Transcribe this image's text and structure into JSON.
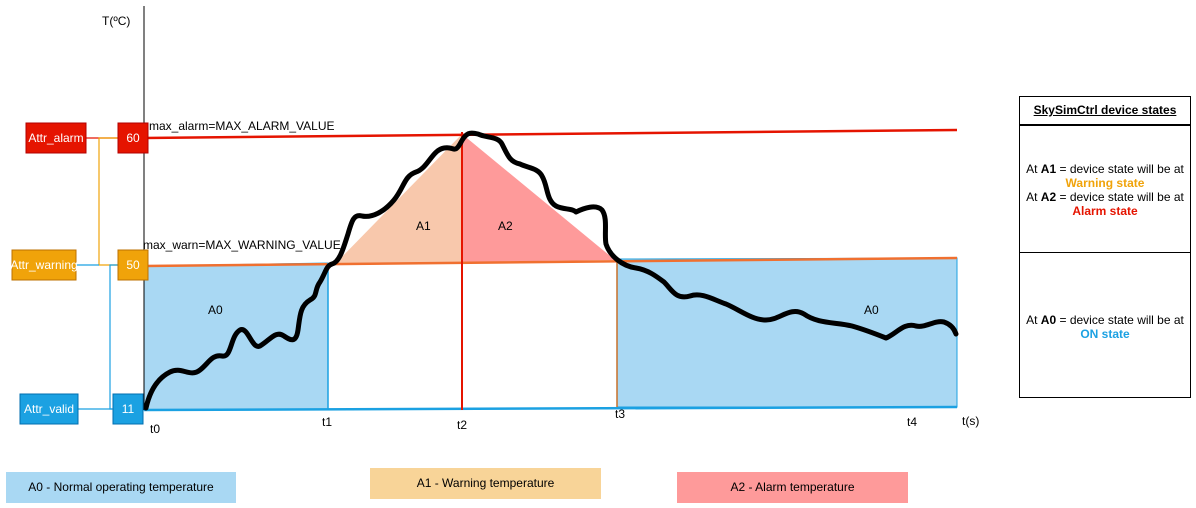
{
  "axes": {
    "y_label": "T(ºC)",
    "x_label": "t(s)",
    "time_ticks": [
      "t0",
      "t1",
      "t2",
      "t3",
      "t4"
    ]
  },
  "thresholds": {
    "alarm": {
      "attr": "Attr_alarm",
      "value": "60",
      "label": "max_alarm=MAX_ALARM_VALUE",
      "color": "#e51400"
    },
    "warning": {
      "attr": "Attr_warning",
      "value": "50",
      "label": "max_warn=MAX_WARNING_VALUE",
      "color": "#f0a30a"
    },
    "valid": {
      "attr": "Attr_valid",
      "value": "11",
      "color": "#1ba1e2"
    }
  },
  "regions": {
    "a0_label": "A0",
    "a1_label": "A1",
    "a2_label": "A2",
    "a0_color": "#a9d8f3",
    "a1_color": "#f8c8ac",
    "a2_color": "#fe9a9a"
  },
  "panel": {
    "title": "SkySimCtrl device states",
    "line1_prefix": "At ",
    "line1_key": "A1",
    "line1_suffix": " = device state will be at",
    "line1_state": "Warning state",
    "line2_prefix": "At ",
    "line2_key": "A2",
    "line2_suffix": " = device state will be at",
    "line2_state": "Alarm state",
    "line3_prefix": "At ",
    "line3_key": "A0",
    "line3_suffix": " = device state will be at",
    "line3_state": "ON state"
  },
  "legend": {
    "a0": "A0 - Normal operating temperature",
    "a1": "A1 - Warning temperature",
    "a2": "A2 - Alarm temperature",
    "a0_color": "#a9d8f3",
    "a1_color": "#f8d498",
    "a2_color": "#fe9a9a"
  }
}
